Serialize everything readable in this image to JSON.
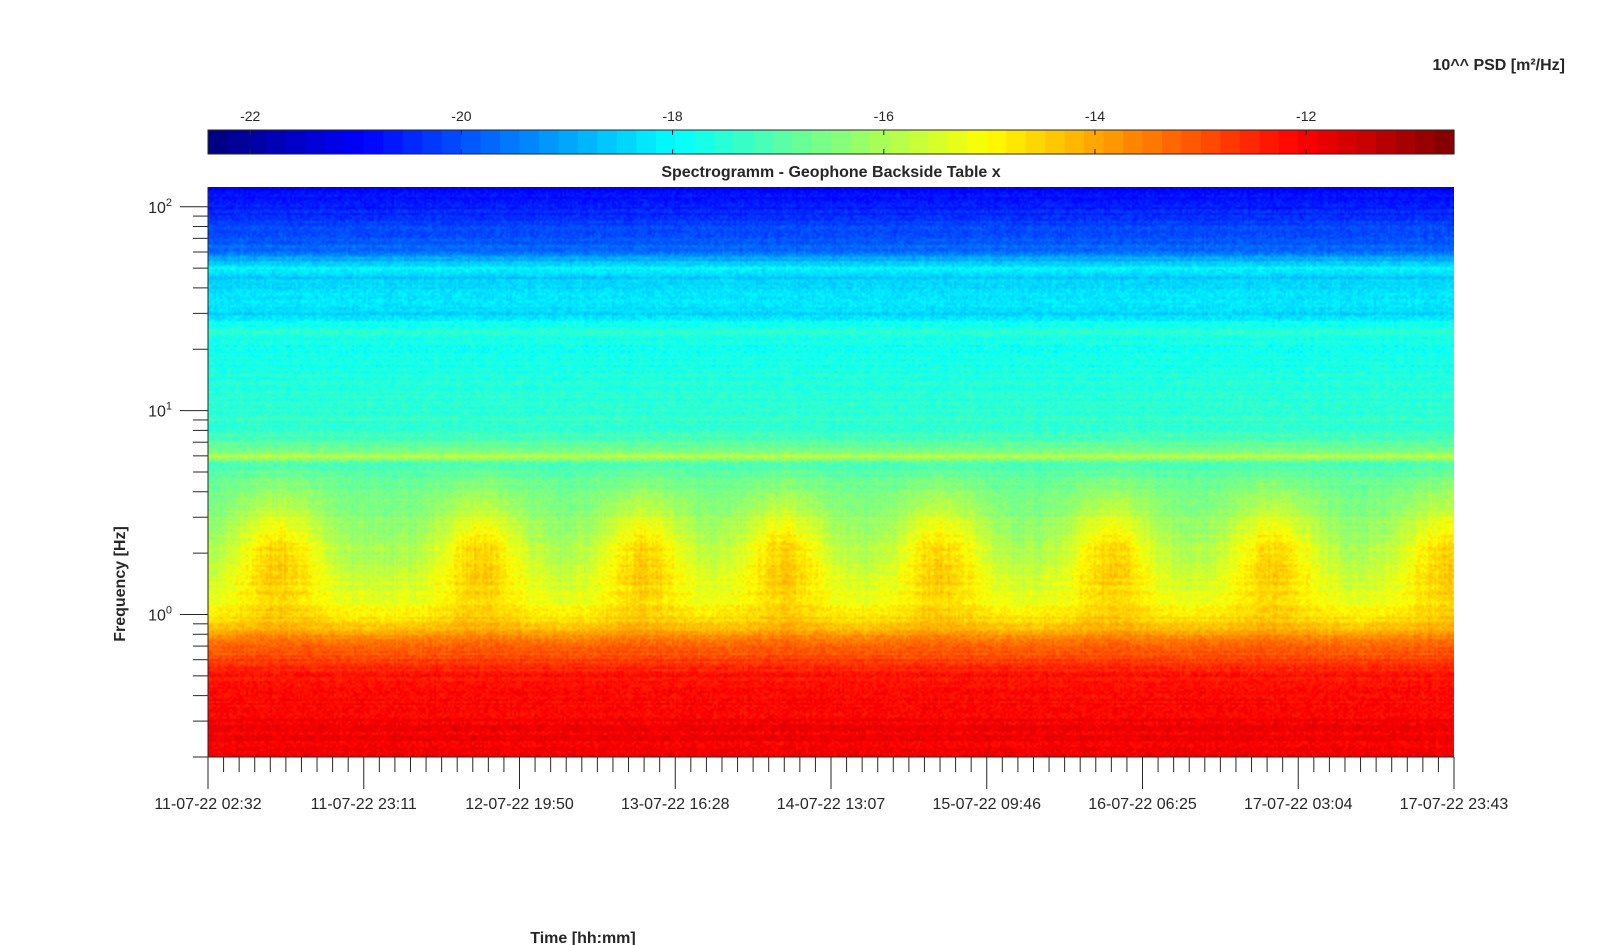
{
  "chart_data": {
    "type": "heatmap",
    "title": "Spectrogramm - Geophone Backside Table x",
    "xlabel": "Time [hh:mm]",
    "ylabel": "Frequency [Hz]",
    "x_tick_labels": [
      "11-07-22 02:32",
      "11-07-22 23:11",
      "12-07-22 19:50",
      "13-07-22 16:28",
      "14-07-22 13:07",
      "15-07-22 09:46",
      "16-07-22 06:25",
      "17-07-22 03:04",
      "17-07-22 23:43"
    ],
    "x_minor_per_major": 10,
    "y_scale": "log",
    "ylim": [
      0.2,
      125
    ],
    "y_major_ticks": [
      1,
      10,
      100
    ],
    "y_tick_labels": [
      {
        "base": "10",
        "exp": "0"
      },
      {
        "base": "10",
        "exp": "1"
      },
      {
        "base": "10",
        "exp": "2"
      }
    ],
    "colorbar": {
      "label": "10^^ PSD [m²/Hz]",
      "placement": "top",
      "range": [
        -22.4,
        -10.6
      ],
      "colormap": "jet",
      "ticks": [
        -22,
        -20,
        -18,
        -16,
        -14,
        -12
      ],
      "tick_labels": [
        "-22",
        "-20",
        "-18",
        "-16",
        "-14",
        "-12"
      ]
    },
    "series": [
      {
        "freq_hz": [
          0.2,
          0.3,
          0.5,
          0.6,
          0.75,
          0.9,
          1.2,
          2.0,
          3.0,
          4.5,
          5.5,
          6.0,
          6.3,
          7.5,
          10,
          15,
          20,
          25,
          30,
          35,
          45,
          50,
          60,
          75,
          100,
          125
        ],
        "psd_log10": [
          -11.9,
          -12.0,
          -12.3,
          -12.8,
          -13.6,
          -14.6,
          -15.4,
          -16.0,
          -16.4,
          -16.8,
          -17.2,
          -15.9,
          -16.6,
          -17.3,
          -17.5,
          -17.6,
          -17.9,
          -17.5,
          -18.5,
          -18.2,
          -18.6,
          -18.1,
          -19.6,
          -20.1,
          -20.6,
          -20.9
        ]
      }
    ],
    "daily_bursts_at_ticks": [
      0.45,
      1.75,
      2.8,
      3.7,
      4.7,
      5.8,
      6.85,
      7.95
    ],
    "calm_band_rows": [
      0.95,
      1.55
    ]
  }
}
